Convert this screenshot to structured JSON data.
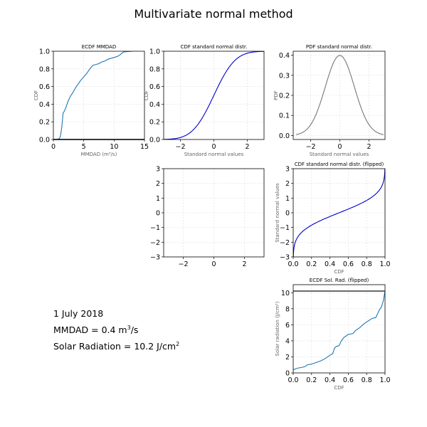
{
  "title": "Multivariate normal method",
  "info": {
    "date": "1 July 2018",
    "mmdad_label": "MMDAD  = 0.4 m",
    "mmdad_sup": "3",
    "mmdad_unit": "/s",
    "solar_label": "Solar Radiation  = 10.2 J/cm",
    "solar_sup": "2"
  },
  "chart_data": [
    {
      "id": "ecdf_mmdad",
      "type": "line",
      "title": "ECDF MMDAD",
      "xlabel": "MMDAD (m³/s)",
      "ylabel": "CDF",
      "xlim": [
        0,
        15
      ],
      "ylim": [
        0,
        1
      ],
      "xticks": [
        0,
        5,
        10,
        15
      ],
      "yticks": [
        0.0,
        0.2,
        0.4,
        0.6,
        0.8,
        1.0
      ],
      "xtick_labels": [
        "0",
        "5",
        "10",
        "15"
      ],
      "ytick_labels": [
        "0.0",
        "0.2",
        "0.4",
        "0.6",
        "0.8",
        "1.0"
      ],
      "series": [
        {
          "name": "ecdf",
          "color": "#1f77b4",
          "x": [
            0.4,
            1.0,
            1.2,
            1.4,
            1.6,
            1.8,
            2.0,
            2.4,
            2.8,
            3.2,
            3.6,
            4.0,
            4.5,
            5.0,
            5.5,
            6.0,
            6.5,
            7.0,
            7.5,
            8.0,
            8.5,
            9.0,
            9.5,
            10.0,
            10.5,
            11.0,
            11.5,
            12.0,
            13.0
          ],
          "y": [
            0.0,
            0.01,
            0.05,
            0.15,
            0.3,
            0.32,
            0.35,
            0.43,
            0.49,
            0.53,
            0.58,
            0.62,
            0.67,
            0.71,
            0.75,
            0.8,
            0.84,
            0.85,
            0.86,
            0.88,
            0.89,
            0.91,
            0.92,
            0.93,
            0.94,
            0.96,
            0.99,
            0.995,
            1.0
          ]
        }
      ],
      "hline": {
        "y": 0.0,
        "color": "#333333"
      }
    },
    {
      "id": "cdf_norm",
      "type": "line",
      "title": "CDF standard normal distr.",
      "xlabel": "Standard normal values",
      "ylabel": "CDF",
      "xlim": [
        -3,
        3
      ],
      "ylim": [
        0,
        1
      ],
      "xticks": [
        -2,
        0,
        2
      ],
      "yticks": [
        0.0,
        0.2,
        0.4,
        0.6,
        0.8,
        1.0
      ],
      "xtick_labels": [
        "−2",
        "0",
        "2"
      ],
      "ytick_labels": [
        "0.0",
        "0.2",
        "0.4",
        "0.6",
        "0.8",
        "1.0"
      ],
      "series": [
        {
          "name": "normal cdf",
          "color": "#0000cc",
          "function": "normal_cdf",
          "domain": [
            -3,
            3
          ]
        }
      ]
    },
    {
      "id": "pdf_norm",
      "type": "line",
      "title": "PDF standard normal distr.",
      "xlabel": "Standard normal values",
      "ylabel": "PDF",
      "xlim": [
        -3.2,
        3.1
      ],
      "ylim": [
        -0.02,
        0.42
      ],
      "xticks": [
        -2,
        0,
        2
      ],
      "yticks": [
        0.0,
        0.1,
        0.2,
        0.3,
        0.4
      ],
      "xtick_labels": [
        "−2",
        "0",
        "2"
      ],
      "ytick_labels": [
        "0.0",
        "0.1",
        "0.2",
        "0.3",
        "0.4"
      ],
      "series": [
        {
          "name": "normal pdf",
          "color": "#777777",
          "function": "normal_pdf",
          "domain": [
            -3,
            3
          ]
        }
      ]
    },
    {
      "id": "empty",
      "type": "line",
      "title": "",
      "xlabel": "",
      "ylabel": "",
      "xlim": [
        -3.28,
        3.28
      ],
      "ylim": [
        -3,
        3
      ],
      "xticks": [
        -2,
        0,
        2
      ],
      "yticks": [
        -3,
        -2,
        -1,
        0,
        1,
        2,
        3
      ],
      "xtick_labels": [
        "−2",
        "0",
        "2"
      ],
      "ytick_labels": [
        "−3",
        "−2",
        "−1",
        "0",
        "1",
        "2",
        "3"
      ],
      "series": []
    },
    {
      "id": "cdf_flipped",
      "type": "line",
      "title": "CDF standard normal distr. (flipped)",
      "xlabel": "CDF",
      "ylabel": "Standard normal values",
      "xlim": [
        0,
        1
      ],
      "ylim": [
        -3,
        3
      ],
      "xticks": [
        0,
        0.2,
        0.4,
        0.6,
        0.8,
        1.0
      ],
      "yticks": [
        -3,
        -2,
        -1,
        0,
        1,
        2,
        3
      ],
      "xtick_labels": [
        "0.0",
        "0.2",
        "0.4",
        "0.6",
        "0.8",
        "1.0"
      ],
      "ytick_labels": [
        "−3",
        "−2",
        "−1",
        "0",
        "1",
        "2",
        "3"
      ],
      "series": [
        {
          "name": "normal cdf flipped",
          "color": "#0000cc",
          "function": "normal_cdf_flipped",
          "domain": [
            -3,
            3
          ]
        }
      ]
    },
    {
      "id": "ecdf_solrad",
      "type": "line",
      "title": "ECDF Sol. Rad. (flipped)",
      "xlabel": "CDF",
      "ylabel": "Solar radiation (J/cm²)",
      "xlim": [
        0,
        1
      ],
      "ylim": [
        0,
        11
      ],
      "xticks": [
        0,
        0.2,
        0.4,
        0.6,
        0.8,
        1.0
      ],
      "yticks": [
        0,
        2,
        4,
        6,
        8,
        10
      ],
      "xtick_labels": [
        "0.0",
        "0.2",
        "0.4",
        "0.6",
        "0.8",
        "1.0"
      ],
      "ytick_labels": [
        "0",
        "2",
        "4",
        "6",
        "8",
        "10"
      ],
      "series": [
        {
          "name": "ecdf flipped",
          "color": "#1f77b4",
          "x": [
            0,
            0.05,
            0.1,
            0.13,
            0.15,
            0.2,
            0.25,
            0.3,
            0.35,
            0.4,
            0.43,
            0.45,
            0.47,
            0.5,
            0.52,
            0.55,
            0.6,
            0.65,
            0.68,
            0.72,
            0.77,
            0.82,
            0.86,
            0.9,
            0.92,
            0.94,
            0.96,
            0.98,
            1.0
          ],
          "y": [
            0.4,
            0.6,
            0.7,
            0.8,
            1.0,
            1.1,
            1.3,
            1.5,
            1.8,
            2.2,
            2.4,
            3.1,
            3.3,
            3.4,
            3.9,
            4.4,
            4.8,
            4.9,
            5.3,
            5.6,
            6.1,
            6.5,
            6.8,
            6.9,
            7.4,
            7.9,
            8.2,
            8.9,
            10.2
          ]
        }
      ],
      "hline": {
        "y": 10.2,
        "color": "#555555"
      }
    }
  ]
}
